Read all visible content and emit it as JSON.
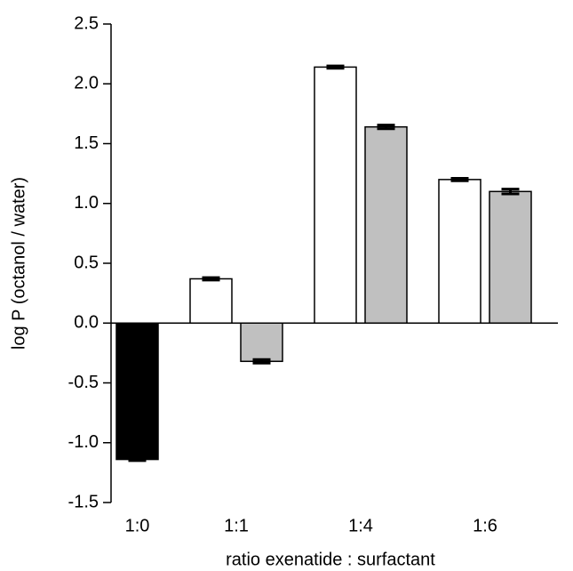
{
  "chart_data": {
    "type": "bar",
    "y_label": "log P (octanol / water)",
    "x_label": "ratio exenatide : surfactant",
    "categories": [
      "1:0",
      "1:1",
      "1:4",
      "1:6"
    ],
    "series": [
      {
        "color": "#000000",
        "values": [
          -1.14,
          null,
          null,
          null
        ],
        "errors": [
          0.01,
          null,
          null,
          null
        ]
      },
      {
        "color": "#ffffff",
        "values": [
          null,
          0.37,
          2.14,
          1.2
        ],
        "errors": [
          null,
          0.01,
          0.01,
          0.01
        ]
      },
      {
        "color": "#c0c0c0",
        "values": [
          null,
          -0.32,
          1.64,
          1.1
        ],
        "errors": [
          null,
          0.015,
          0.015,
          0.02
        ]
      }
    ],
    "ylim": [
      -1.5,
      2.5
    ],
    "yticks": [
      {
        "value": -1.5,
        "label": "-1.5"
      },
      {
        "value": -1,
        "label": "-1.0"
      },
      -0.5,
      {
        "value": 0,
        "label": "0.0"
      },
      0.5,
      {
        "value": 1,
        "label": "1.0"
      },
      1.5,
      {
        "value": 2,
        "label": "2.0"
      },
      2.5
    ]
  }
}
